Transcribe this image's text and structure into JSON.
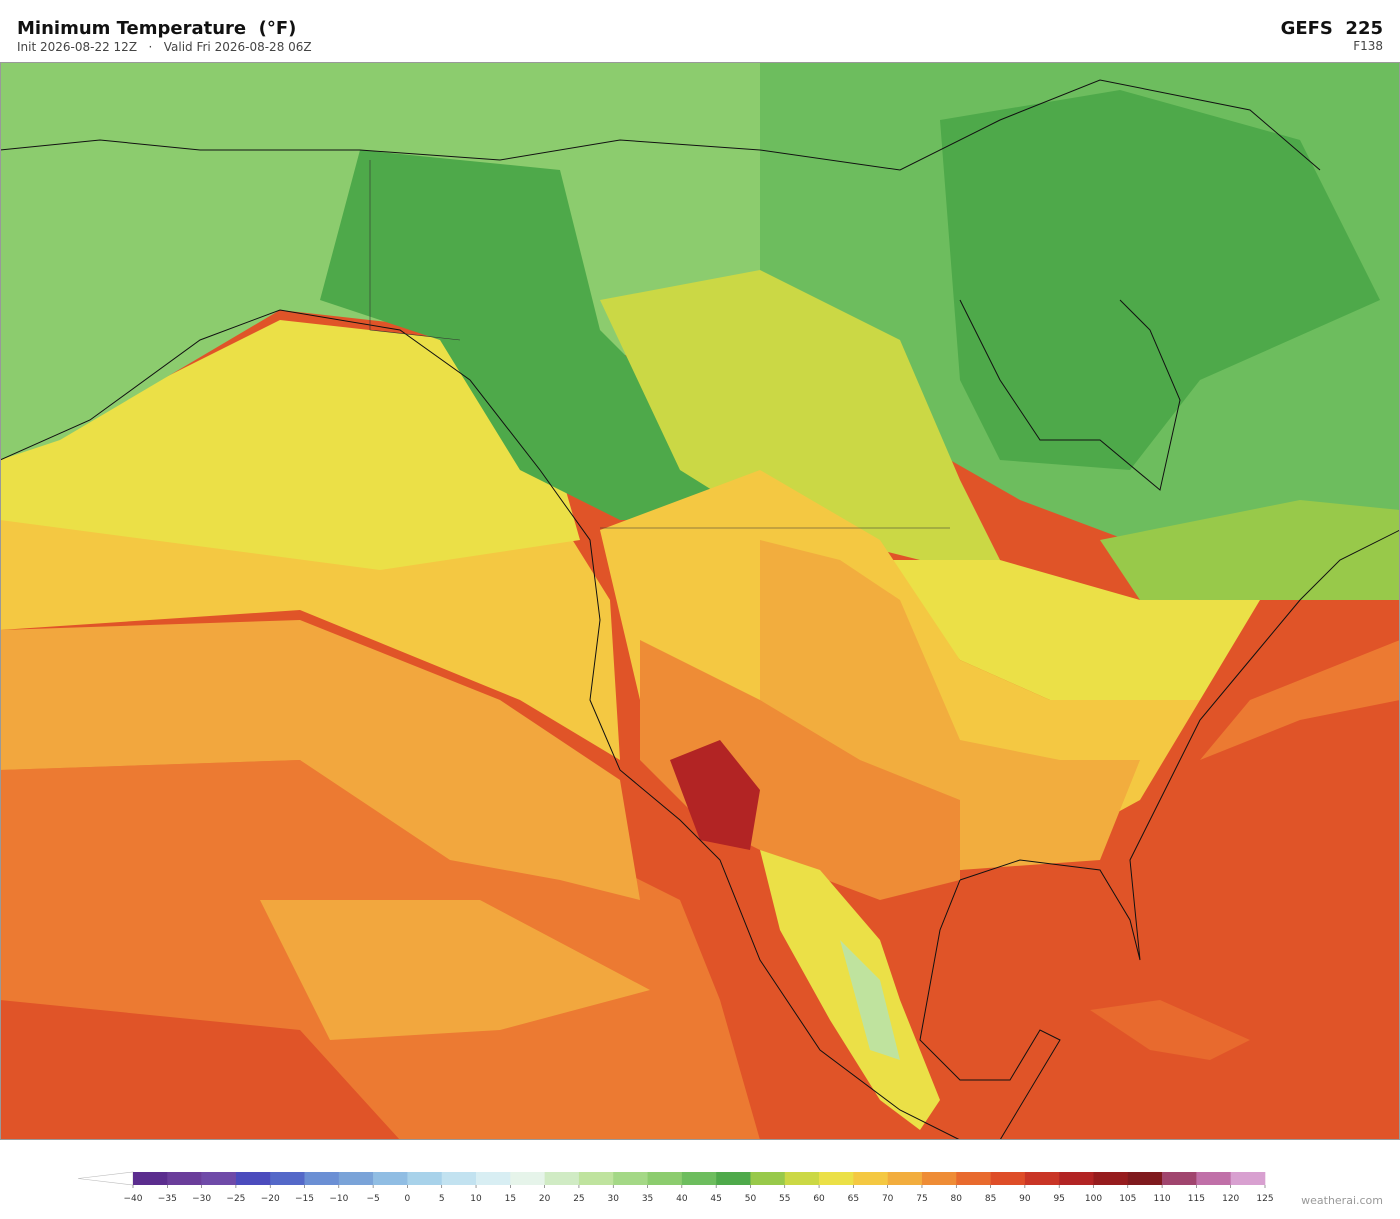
{
  "header": {
    "title": "Minimum Temperature  (°F)",
    "subtitle": "Init 2026-08-22 12Z   ·   Valid Fri 2026-08-28 06Z",
    "model": "GEFS  225",
    "forecast_hour": "F138"
  },
  "colorbar": {
    "ticks": [
      {
        "value": -40,
        "label": "−40"
      },
      {
        "value": -35,
        "label": "−35"
      },
      {
        "value": -30,
        "label": "−30"
      },
      {
        "value": -25,
        "label": "−25"
      },
      {
        "value": -20,
        "label": "−20"
      },
      {
        "value": -15,
        "label": "−15"
      },
      {
        "value": -10,
        "label": "−10"
      },
      {
        "value": -5,
        "label": "−5"
      },
      0,
      5,
      10,
      15,
      20,
      25,
      30,
      35,
      40,
      45,
      50,
      55,
      60,
      65,
      70,
      75,
      80,
      85,
      90,
      95,
      100,
      105,
      110,
      115,
      120,
      125
    ],
    "colors": [
      "#5b2d8e",
      "#6a3d9a",
      "#6f4aa8",
      "#4b4bbd",
      "#5468c8",
      "#6b8fd4",
      "#7aa3d8",
      "#90bde3",
      "#a8d2ea",
      "#c2e2f0",
      "#d8eef3",
      "#e6f4ea",
      "#d0ebc4",
      "#bfe39e",
      "#a4d886",
      "#8ccc6e",
      "#6dbd5e",
      "#4ea94a",
      "#98c94a",
      "#cbd845",
      "#ebe047",
      "#f4c842",
      "#f2ad3e",
      "#ee8c36",
      "#e86a2e",
      "#de4d28",
      "#c93526",
      "#b22424",
      "#961c1e",
      "#7f1a1e",
      "#a0456e",
      "#c070a8",
      "#d8a0d0"
    ],
    "under_color": "#ffffff"
  },
  "watermark": "weatherai.com"
}
